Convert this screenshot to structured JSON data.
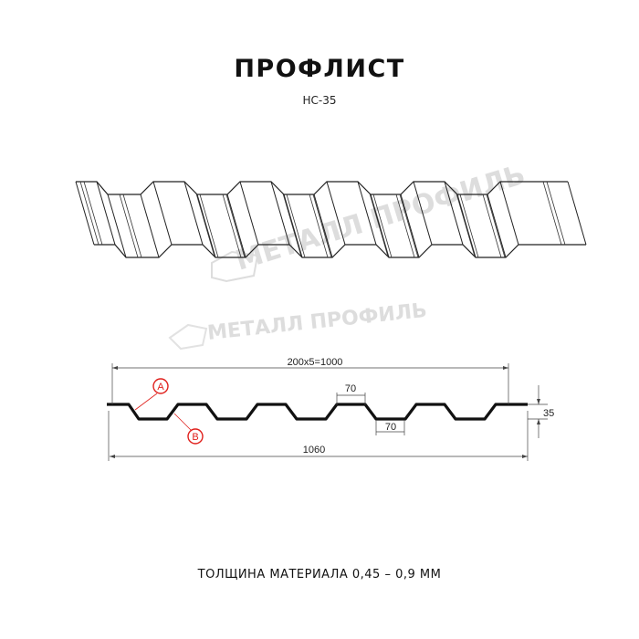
{
  "title": "ПРОФЛИСТ",
  "subtitle": "НС-35",
  "watermark": "МЕТАЛЛ ПРОФИЛЬ",
  "section": {
    "dim_pitch": "200x5=1000",
    "dim_total": "1060",
    "dim_height": "35",
    "dim_top_flat": "70",
    "dim_bottom_flat": "70",
    "label_a": "A",
    "label_b": "B",
    "marker_color": "#e0201c"
  },
  "footer": "ТОЛЩИНА МАТЕРИАЛА 0,45 – 0,9 ММ"
}
